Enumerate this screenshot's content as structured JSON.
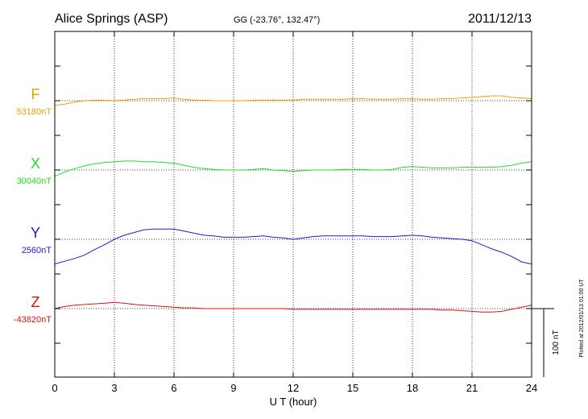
{
  "chart_data": {
    "type": "line",
    "title": "Alice Springs (ASP)",
    "subtitle": "GG (-23.76°, 132.47°)",
    "date": "2011/12/13",
    "xlabel": "U T (hour)",
    "xlim": [
      0,
      24
    ],
    "xticks": [
      "0",
      "3",
      "6",
      "9",
      "12",
      "15",
      "18",
      "21",
      "24"
    ],
    "grid": true,
    "scale_bar_label": "100 nT",
    "scale_bar_nT": 100,
    "plotted_note": "Plotted at 2012/01/13 01:00 UT",
    "series": [
      {
        "name": "F",
        "baseline_label": "53180nT",
        "baseline_nT": 53180,
        "color": "#e8a200",
        "x": [
          0,
          0.5,
          1,
          1.5,
          2,
          2.5,
          3,
          3.5,
          4,
          4.5,
          5,
          5.5,
          6,
          6.5,
          7,
          7.5,
          8,
          8.5,
          9,
          9.5,
          10,
          10.5,
          11,
          11.5,
          12,
          12.5,
          13,
          13.5,
          14,
          14.5,
          15,
          15.5,
          16,
          16.5,
          17,
          17.5,
          18,
          18.5,
          19,
          19.5,
          20,
          20.5,
          21,
          21.5,
          22,
          22.5,
          23,
          23.5,
          24
        ],
        "values": [
          53173,
          53175,
          53178,
          53180,
          53181,
          53181,
          53180,
          53181,
          53182,
          53183,
          53183,
          53183,
          53184,
          53182,
          53181,
          53181,
          53180,
          53180,
          53180,
          53180,
          53181,
          53181,
          53181,
          53181,
          53181,
          53182,
          53182,
          53182,
          53182,
          53182,
          53183,
          53183,
          53182,
          53182,
          53182,
          53183,
          53183,
          53182,
          53182,
          53183,
          53183,
          53184,
          53185,
          53186,
          53187,
          53187,
          53185,
          53184,
          53183
        ]
      },
      {
        "name": "X",
        "baseline_label": "30040nT",
        "baseline_nT": 30040,
        "color": "#22dd22",
        "x": [
          0,
          0.5,
          1,
          1.5,
          2,
          2.5,
          3,
          3.5,
          4,
          4.5,
          5,
          5.5,
          6,
          6.5,
          7,
          7.5,
          8,
          8.5,
          9,
          9.5,
          10,
          10.5,
          11,
          11.5,
          12,
          12.5,
          13,
          13.5,
          14,
          14.5,
          15,
          15.5,
          16,
          16.5,
          17,
          17.5,
          18,
          18.5,
          19,
          19.5,
          20,
          20.5,
          21,
          21.5,
          22,
          22.5,
          23,
          23.5,
          24
        ],
        "values": [
          30031,
          30037,
          30042,
          30046,
          30049,
          30051,
          30052,
          30053,
          30053,
          30052,
          30052,
          30051,
          30050,
          30047,
          30044,
          30042,
          30041,
          30040,
          30040,
          30040,
          30041,
          30042,
          30040,
          30039,
          30038,
          30039,
          30040,
          30040,
          30040,
          30041,
          30041,
          30041,
          30040,
          30040,
          30041,
          30044,
          30045,
          30044,
          30043,
          30043,
          30043,
          30044,
          30044,
          30044,
          30044,
          30045,
          30047,
          30050,
          30052
        ]
      },
      {
        "name": "Y",
        "baseline_label": "2560nT",
        "baseline_nT": 2560,
        "color": "#1a1adc",
        "x": [
          0,
          0.5,
          1,
          1.5,
          2,
          2.5,
          3,
          3.5,
          4,
          4.5,
          5,
          5.5,
          6,
          6.5,
          7,
          7.5,
          8,
          8.5,
          9,
          9.5,
          10,
          10.5,
          11,
          11.5,
          12,
          12.5,
          13,
          13.5,
          14,
          14.5,
          15,
          15.5,
          16,
          16.5,
          17,
          17.5,
          18,
          18.5,
          19,
          19.5,
          20,
          20.5,
          21,
          21.5,
          22,
          22.5,
          23,
          23.5,
          24
        ],
        "values": [
          2524,
          2528,
          2532,
          2537,
          2545,
          2552,
          2560,
          2566,
          2570,
          2574,
          2575,
          2575,
          2575,
          2572,
          2569,
          2566,
          2565,
          2563,
          2563,
          2563,
          2564,
          2565,
          2563,
          2562,
          2560,
          2562,
          2564,
          2565,
          2565,
          2565,
          2565,
          2565,
          2564,
          2564,
          2564,
          2565,
          2566,
          2565,
          2563,
          2562,
          2561,
          2560,
          2558,
          2552,
          2546,
          2541,
          2535,
          2527,
          2524
        ]
      },
      {
        "name": "Z",
        "baseline_label": "-43820nT",
        "baseline_nT": -43820,
        "color": "#dd1111",
        "x": [
          0,
          0.5,
          1,
          1.5,
          2,
          2.5,
          3,
          3.5,
          4,
          4.5,
          5,
          5.5,
          6,
          6.5,
          7,
          7.5,
          8,
          8.5,
          9,
          9.5,
          10,
          10.5,
          11,
          11.5,
          12,
          12.5,
          13,
          13.5,
          14,
          14.5,
          15,
          15.5,
          16,
          16.5,
          17,
          17.5,
          18,
          18.5,
          19,
          19.5,
          20,
          20.5,
          21,
          21.5,
          22,
          22.5,
          23,
          23.5,
          24
        ],
        "values": [
          -43820,
          -43817,
          -43815,
          -43814,
          -43813,
          -43812,
          -43811,
          -43812,
          -43814,
          -43815,
          -43816,
          -43817,
          -43818,
          -43819,
          -43819,
          -43820,
          -43820,
          -43820,
          -43820,
          -43820,
          -43820,
          -43820,
          -43820,
          -43820,
          -43821,
          -43821,
          -43821,
          -43821,
          -43821,
          -43821,
          -43821,
          -43821,
          -43821,
          -43821,
          -43821,
          -43821,
          -43821,
          -43821,
          -43821,
          -43822,
          -43822,
          -43823,
          -43824,
          -43825,
          -43825,
          -43824,
          -43821,
          -43818,
          -43815
        ]
      }
    ]
  }
}
